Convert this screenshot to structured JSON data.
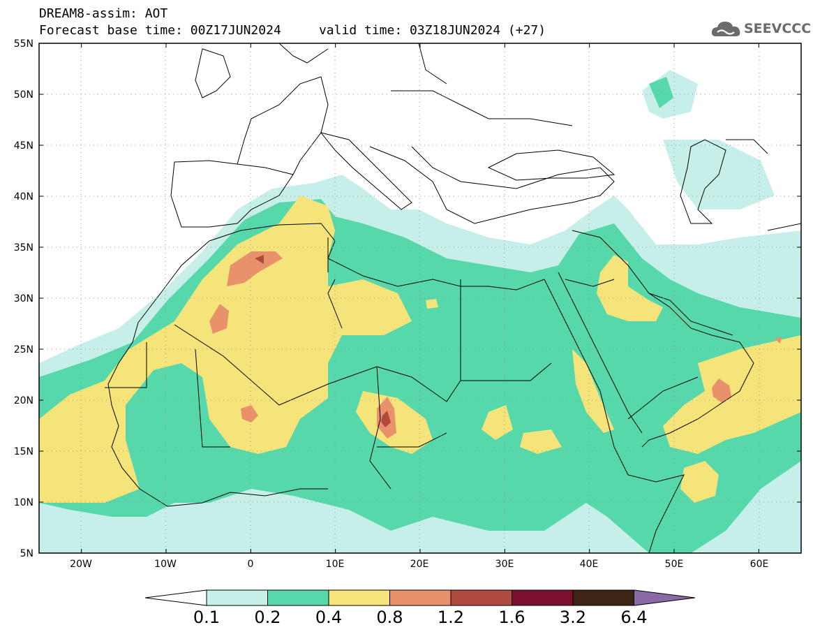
{
  "header": {
    "title_line1": "DREAM8-assim: AOT",
    "title_line2": "Forecast base time: 00Z17JUN2024     valid time: 03Z18JUN2024 (+27)"
  },
  "logo": {
    "text": "SEEVCCC",
    "icon": "cloud-icon"
  },
  "map": {
    "lat_labels": [
      "55N",
      "50N",
      "45N",
      "40N",
      "35N",
      "30N",
      "25N",
      "20N",
      "15N",
      "10N",
      "5N"
    ],
    "lon_labels": [
      "20W",
      "10W",
      "0",
      "10E",
      "20E",
      "30E",
      "40E",
      "50E",
      "60E"
    ],
    "lat_range": [
      5,
      55
    ],
    "lon_range": [
      -25,
      65
    ],
    "grid": "dotted"
  },
  "colorbar": {
    "levels": [
      "0.1",
      "0.2",
      "0.4",
      "0.8",
      "1.2",
      "1.6",
      "3.2",
      "6.4"
    ],
    "colors": [
      "#ffffff",
      "#c5efe8",
      "#57d8ab",
      "#f4e47a",
      "#e8916a",
      "#b04a3e",
      "#7b0f2e",
      "#3e2414",
      "#8a6aa6"
    ]
  }
}
